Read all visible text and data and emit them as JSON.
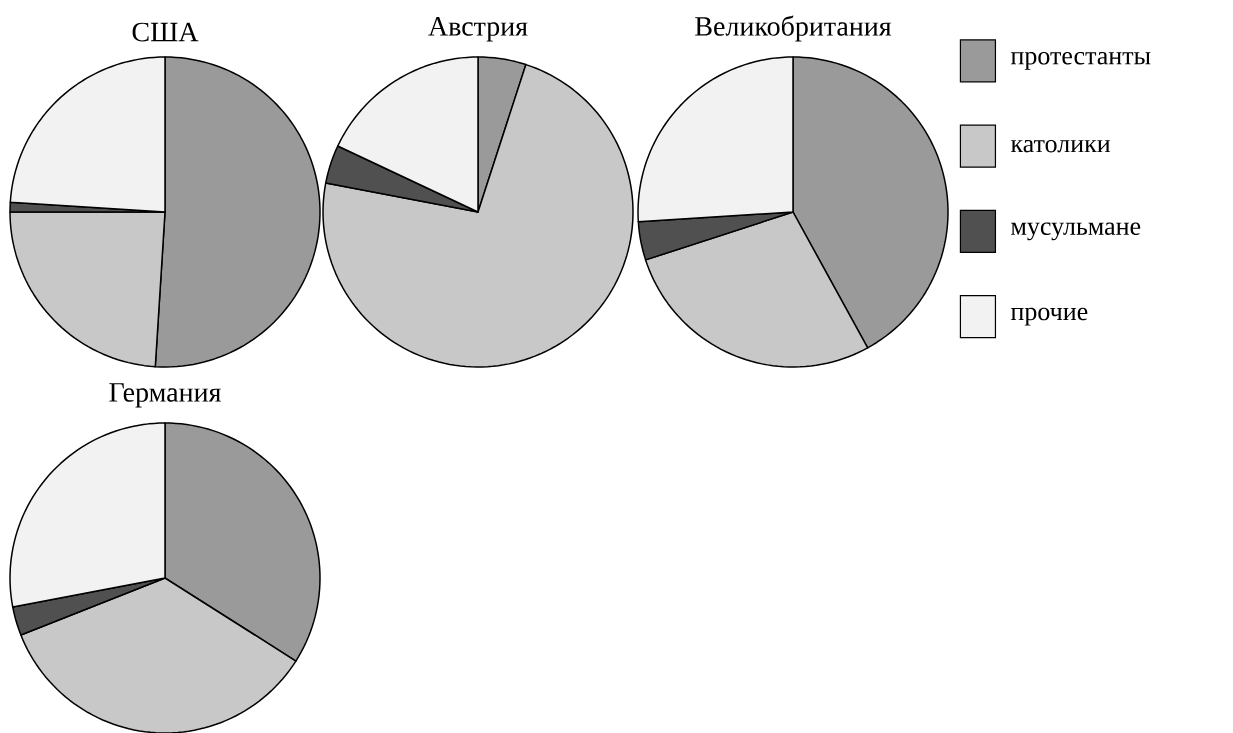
{
  "chart_data": [
    {
      "type": "pie",
      "title": "США",
      "categories": [
        null,
        null,
        null,
        null
      ],
      "values": [
        51,
        24,
        1,
        24
      ],
      "colors": [
        "#9a9a9a",
        "#c8c8c8",
        "#505050",
        "#f2f2f2"
      ]
    },
    {
      "type": "pie",
      "title": "Австрия",
      "categories": [
        null,
        null,
        null,
        null
      ],
      "values": [
        5,
        73,
        4,
        18
      ],
      "colors": [
        "#9a9a9a",
        "#c8c8c8",
        "#505050",
        "#f2f2f2"
      ]
    },
    {
      "type": "pie",
      "title": "Великобритания",
      "categories": [
        "протестанты",
        "католики",
        "мусульмане",
        "прочие"
      ],
      "values": [
        42,
        28,
        4,
        26
      ],
      "colors": [
        "#9a9a9a",
        "#c8c8c8",
        "#505050",
        "#f2f2f2"
      ],
      "legend": "right"
    },
    {
      "type": "pie",
      "title": "Германия",
      "categories": [
        null,
        null,
        null,
        null
      ],
      "values": [
        34,
        35,
        3,
        28
      ],
      "colors": [
        "#9a9a9a",
        "#c8c8c8",
        "#505050",
        "#f2f2f2"
      ]
    }
  ]
}
